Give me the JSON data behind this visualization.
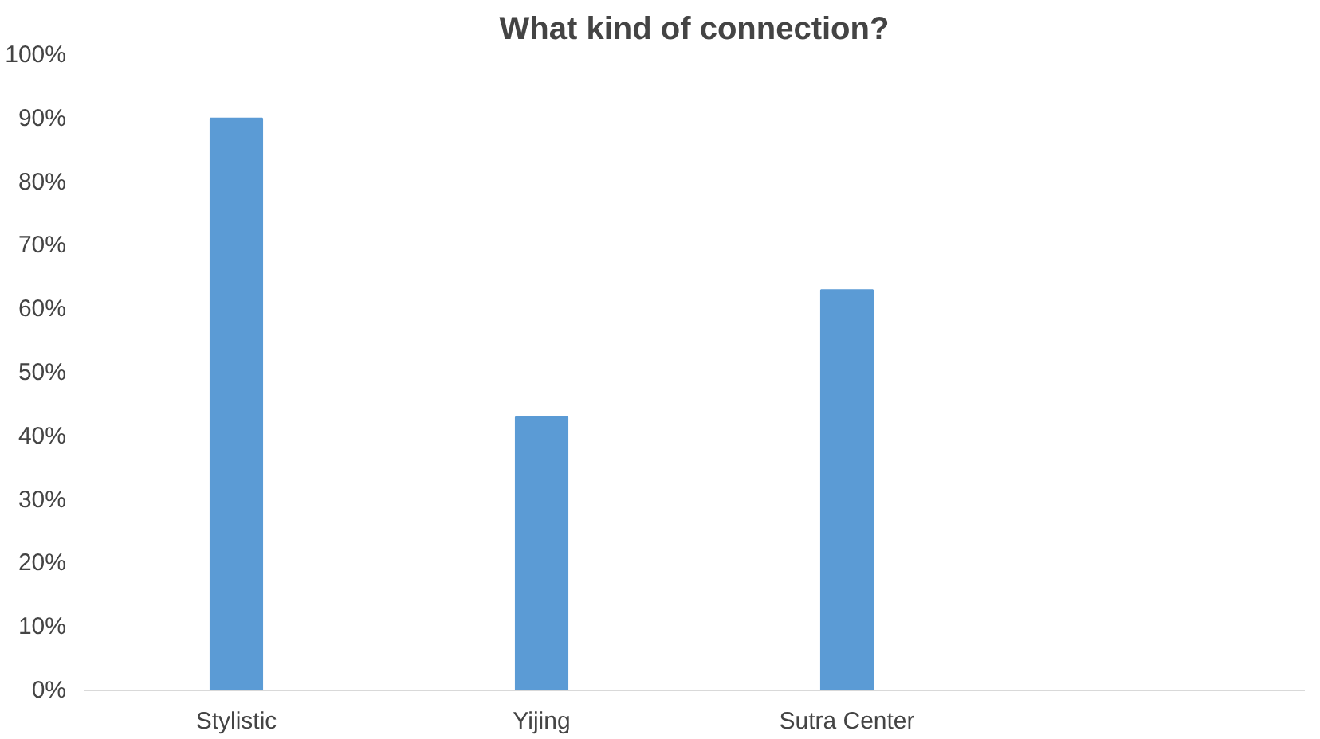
{
  "chart_data": {
    "type": "bar",
    "title": "What kind of connection?",
    "categories": [
      "Stylistic",
      "Yijing",
      "Sutra Center",
      null
    ],
    "values": [
      90,
      43,
      63,
      null
    ],
    "color": "#5b9bd5",
    "ylim": [
      0,
      100
    ],
    "yticks": [
      {
        "value": 0,
        "label": "0%"
      },
      {
        "value": 10,
        "label": "10%"
      },
      {
        "value": 20,
        "label": "20%"
      },
      {
        "value": 30,
        "label": "30%"
      },
      {
        "value": 40,
        "label": "40%"
      },
      {
        "value": 50,
        "label": "50%"
      },
      {
        "value": 60,
        "label": "60%"
      },
      {
        "value": 70,
        "label": "70%"
      },
      {
        "value": 80,
        "label": "80%"
      },
      {
        "value": 90,
        "label": "90%"
      },
      {
        "value": 100,
        "label": "100%"
      }
    ],
    "grid": false
  }
}
